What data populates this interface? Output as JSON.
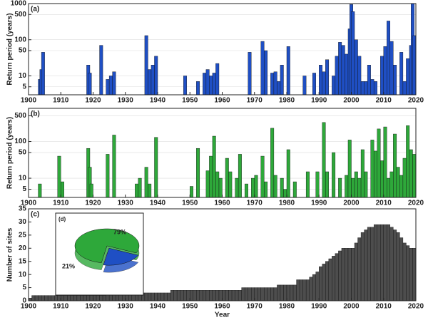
{
  "chart_data": [
    {
      "type": "bar",
      "title": "(a)",
      "y_label": "Return period (years)",
      "color": "#1f4fc4",
      "log_scale": true,
      "grid": true,
      "xlim": [
        1900,
        2020
      ],
      "xticks": [
        1900,
        1910,
        1920,
        1930,
        1940,
        1950,
        1960,
        1970,
        1980,
        1990,
        2000,
        2010,
        2020
      ],
      "ylim": [
        3,
        1000
      ],
      "yticks": [
        5,
        10,
        50,
        100,
        500,
        1000
      ],
      "x": [
        1903,
        1903.5,
        1904,
        1918,
        1918.5,
        1922,
        1924,
        1925,
        1926,
        1936,
        1937,
        1938,
        1939,
        1948,
        1952,
        1954,
        1955,
        1956,
        1957,
        1958,
        1968,
        1972,
        1973,
        1975,
        1976,
        1977,
        1978,
        1980,
        1985,
        1988,
        1990,
        1991,
        1992,
        1994,
        1995,
        1996,
        1997,
        1998,
        1999,
        1999.5,
        2000,
        2001,
        2002,
        2003,
        2004,
        2005,
        2006,
        2007,
        2009,
        2010,
        2011,
        2012,
        2013,
        2015,
        2016,
        2017,
        2018,
        2018.5,
        2019
      ],
      "values": [
        8,
        15,
        45,
        20,
        12,
        70,
        8,
        10,
        13,
        130,
        15,
        20,
        35,
        10,
        7,
        12,
        15,
        10,
        12,
        22,
        45,
        90,
        50,
        12,
        13,
        7,
        20,
        65,
        10,
        12,
        20,
        13,
        28,
        10,
        35,
        85,
        70,
        40,
        200,
        950,
        600,
        100,
        35,
        7,
        7,
        20,
        8,
        7,
        35,
        65,
        330,
        90,
        20,
        45,
        7,
        30,
        70,
        1000,
        130
      ]
    },
    {
      "type": "bar",
      "title": "(b)",
      "y_label": "Return period (years)",
      "color": "#2ea83a",
      "log_scale": true,
      "grid": true,
      "xlim": [
        1900,
        2020
      ],
      "xticks": [
        1900,
        1910,
        1920,
        1930,
        1940,
        1950,
        1960,
        1970,
        1980,
        1990,
        2000,
        2010,
        2020
      ],
      "ylim": [
        3,
        800
      ],
      "yticks": [
        5,
        10,
        50,
        100,
        500
      ],
      "x": [
        1903,
        1909,
        1910,
        1918,
        1918.5,
        1919,
        1924,
        1926,
        1933,
        1934,
        1936,
        1937,
        1939,
        1950,
        1952,
        1955,
        1956,
        1957,
        1958,
        1959,
        1961,
        1962,
        1964,
        1965,
        1967,
        1969,
        1970,
        1972,
        1973,
        1975,
        1976,
        1978,
        1979,
        1980,
        1982,
        1986,
        1989,
        1991,
        1992,
        1994,
        1996,
        1998,
        1999,
        2000,
        2001,
        2002,
        2003,
        2004,
        2006,
        2007,
        2008,
        2009,
        2010,
        2011,
        2012,
        2013,
        2014,
        2015,
        2016,
        2017,
        2018,
        2019
      ],
      "values": [
        7,
        40,
        8,
        65,
        20,
        7,
        45,
        150,
        7,
        10,
        20,
        7,
        130,
        6,
        65,
        16,
        40,
        140,
        15,
        10,
        35,
        15,
        10,
        45,
        7,
        10,
        12,
        40,
        8,
        230,
        12,
        10,
        5,
        60,
        8,
        15,
        15,
        330,
        15,
        50,
        10,
        12,
        110,
        10,
        15,
        10,
        60,
        15,
        110,
        55,
        220,
        30,
        250,
        10,
        15,
        160,
        20,
        12,
        35,
        270,
        60,
        45
      ]
    },
    {
      "type": "bar",
      "title": "(c)",
      "y_label": "Number of sites",
      "x_label": "Year",
      "color": "#4d4d4d",
      "log_scale": false,
      "grid": false,
      "xlim": [
        1900,
        2020
      ],
      "xticks": [
        1900,
        1910,
        1920,
        1930,
        1940,
        1950,
        1960,
        1970,
        1980,
        1990,
        2000,
        2010,
        2020
      ],
      "ylim": [
        0,
        35
      ],
      "yticks": [
        0,
        5,
        10,
        15,
        20,
        25,
        30,
        35
      ],
      "x": [
        1900,
        1901,
        1902,
        1903,
        1904,
        1905,
        1906,
        1907,
        1908,
        1909,
        1910,
        1911,
        1912,
        1913,
        1914,
        1915,
        1916,
        1917,
        1918,
        1919,
        1920,
        1921,
        1922,
        1923,
        1924,
        1925,
        1926,
        1927,
        1928,
        1929,
        1930,
        1931,
        1932,
        1933,
        1934,
        1935,
        1936,
        1937,
        1938,
        1939,
        1940,
        1941,
        1942,
        1943,
        1944,
        1945,
        1946,
        1947,
        1948,
        1949,
        1950,
        1951,
        1952,
        1953,
        1954,
        1955,
        1956,
        1957,
        1958,
        1959,
        1960,
        1961,
        1962,
        1963,
        1964,
        1965,
        1966,
        1967,
        1968,
        1969,
        1970,
        1971,
        1972,
        1973,
        1974,
        1975,
        1976,
        1977,
        1978,
        1979,
        1980,
        1981,
        1982,
        1983,
        1984,
        1985,
        1986,
        1987,
        1988,
        1989,
        1990,
        1991,
        1992,
        1993,
        1994,
        1995,
        1996,
        1997,
        1998,
        1999,
        2000,
        2001,
        2002,
        2003,
        2004,
        2005,
        2006,
        2007,
        2008,
        2009,
        2010,
        2011,
        2012,
        2013,
        2014,
        2015,
        2016,
        2017,
        2018,
        2019
      ],
      "values": [
        1,
        2,
        2,
        2,
        2,
        2,
        2,
        2,
        2,
        2,
        2,
        2,
        2,
        2,
        2,
        2,
        2,
        2,
        2,
        2,
        2,
        2,
        2,
        2,
        3,
        3,
        3,
        3,
        3,
        3,
        3,
        3,
        3,
        3,
        3,
        3,
        3,
        3,
        3,
        3,
        3,
        3,
        3,
        3,
        4,
        4,
        4,
        4,
        4,
        4,
        4,
        4,
        4,
        4,
        4,
        4,
        4,
        4,
        4,
        4,
        4,
        4,
        4,
        4,
        4,
        4,
        5,
        5,
        5,
        5,
        5,
        5,
        5,
        5,
        5,
        5,
        5,
        6,
        6,
        6,
        6,
        6,
        6,
        8,
        8,
        8,
        8,
        9,
        10,
        11,
        13,
        14,
        15,
        16,
        17,
        18,
        19,
        20,
        20,
        20,
        20,
        22,
        24,
        26,
        27,
        28,
        28,
        29,
        29,
        29,
        29,
        29,
        28,
        27,
        26,
        24,
        22,
        21,
        20,
        20
      ]
    },
    {
      "type": "pie",
      "title": "(d)",
      "values": [
        79,
        21
      ],
      "value_labels": [
        "79%",
        "21%"
      ],
      "colors": [
        "#2ea83a",
        "#1f4fc4"
      ]
    }
  ]
}
